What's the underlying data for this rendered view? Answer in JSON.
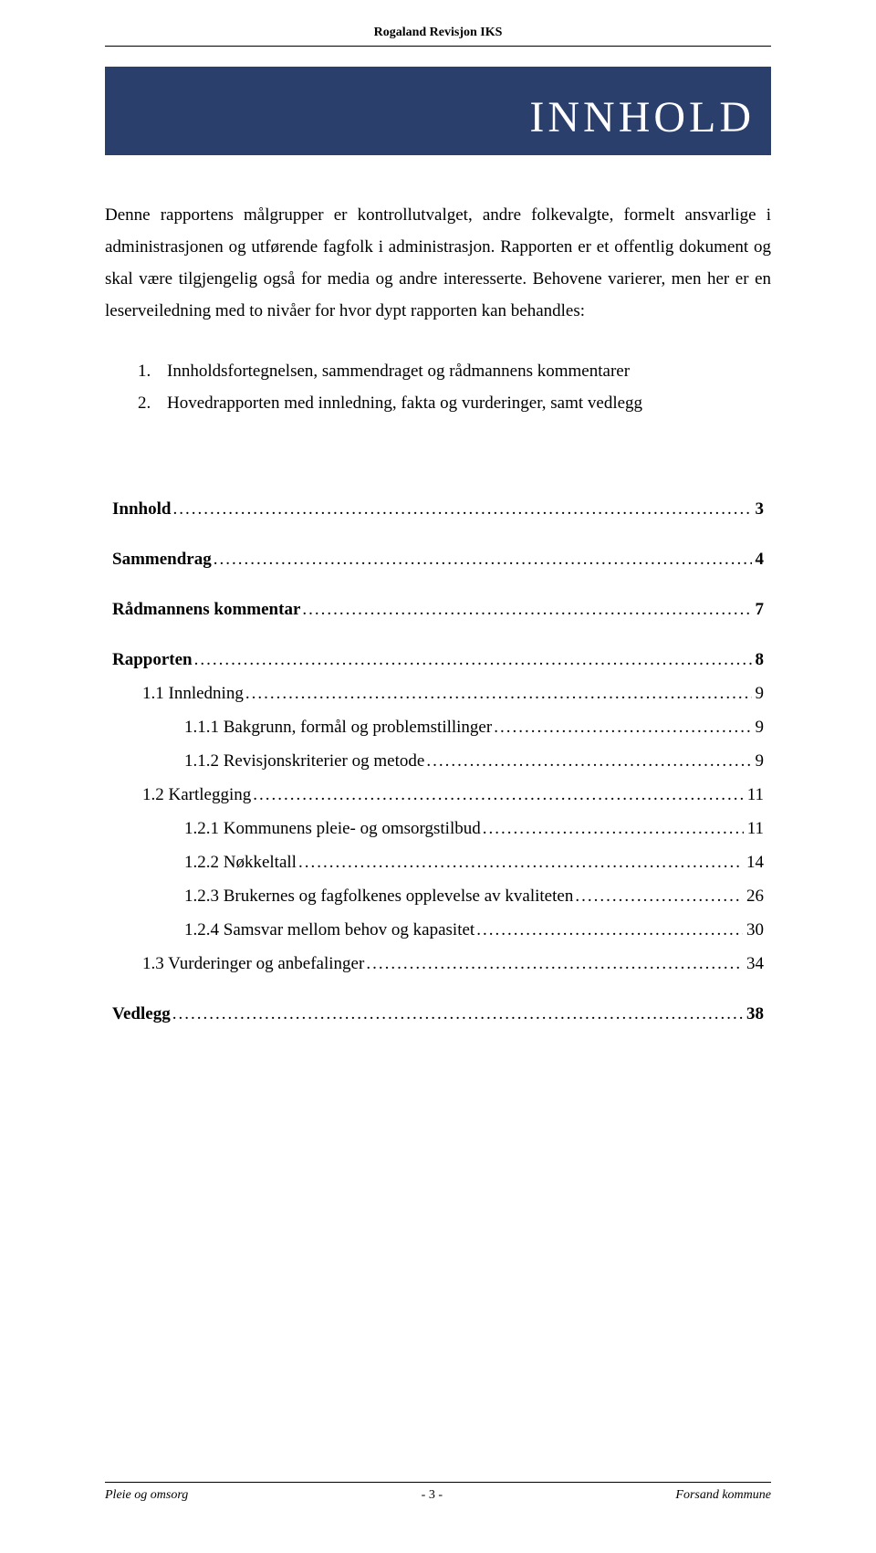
{
  "header": {
    "org": "Rogaland Revisjon IKS"
  },
  "title": "INNHOLD",
  "intro_para": "Denne rapportens målgrupper er kontrollutvalget, andre folkevalgte, formelt ansvarlige i administrasjonen og utførende fagfolk i administrasjon. Rapporten er et offentlig dokument og skal være tilgjengelig også for media og andre interesserte. Behovene varierer, men her er en leserveiledning med to nivåer for hvor dypt rapporten kan behandles:",
  "numbered": [
    "Innholdsfortegnelsen, sammendraget og rådmannens kommentarer",
    "Hovedrapporten med innledning, fakta og vurderinger, samt vedlegg"
  ],
  "toc": [
    {
      "label": "Innhold",
      "page": "3",
      "bold": true,
      "indent": 0,
      "gap_after": true
    },
    {
      "label": "Sammendrag",
      "page": "4",
      "bold": true,
      "indent": 0,
      "gap_after": true
    },
    {
      "label": "Rådmannens kommentar",
      "page": "7",
      "bold": true,
      "indent": 0,
      "gap_after": true
    },
    {
      "label": "Rapporten",
      "page": "8",
      "bold": true,
      "indent": 0,
      "gap_after": false
    },
    {
      "label": "1.1    Innledning",
      "page": "9",
      "bold": false,
      "indent": 1,
      "gap_after": false
    },
    {
      "label": "1.1.1  Bakgrunn, formål og problemstillinger",
      "page": "9",
      "bold": false,
      "indent": 2,
      "gap_after": false
    },
    {
      "label": "1.1.2  Revisjonskriterier og metode",
      "page": "9",
      "bold": false,
      "indent": 2,
      "gap_after": false
    },
    {
      "label": "1.2    Kartlegging",
      "page": "11",
      "bold": false,
      "indent": 1,
      "gap_after": false
    },
    {
      "label": "1.2.1  Kommunens pleie- og omsorgstilbud",
      "page": "11",
      "bold": false,
      "indent": 2,
      "gap_after": false
    },
    {
      "label": "1.2.2  Nøkkeltall",
      "page": "14",
      "bold": false,
      "indent": 2,
      "gap_after": false
    },
    {
      "label": "1.2.3  Brukernes og fagfolkenes opplevelse av kvaliteten",
      "page": "26",
      "bold": false,
      "indent": 2,
      "gap_after": false
    },
    {
      "label": "1.2.4  Samsvar mellom behov og kapasitet",
      "page": "30",
      "bold": false,
      "indent": 2,
      "gap_after": false
    },
    {
      "label": "1.3    Vurderinger og anbefalinger",
      "page": "34",
      "bold": false,
      "indent": 1,
      "gap_after": true
    },
    {
      "label": "Vedlegg",
      "page": "38",
      "bold": true,
      "indent": 0,
      "gap_after": false
    }
  ],
  "footer": {
    "left": "Pleie og omsorg",
    "center": "- 3 -",
    "right": "Forsand kommune"
  },
  "colors": {
    "title_bg": "#2a3f6c",
    "title_fg": "#ffffff",
    "text": "#000000",
    "rule": "#000000",
    "page_bg": "#ffffff"
  }
}
